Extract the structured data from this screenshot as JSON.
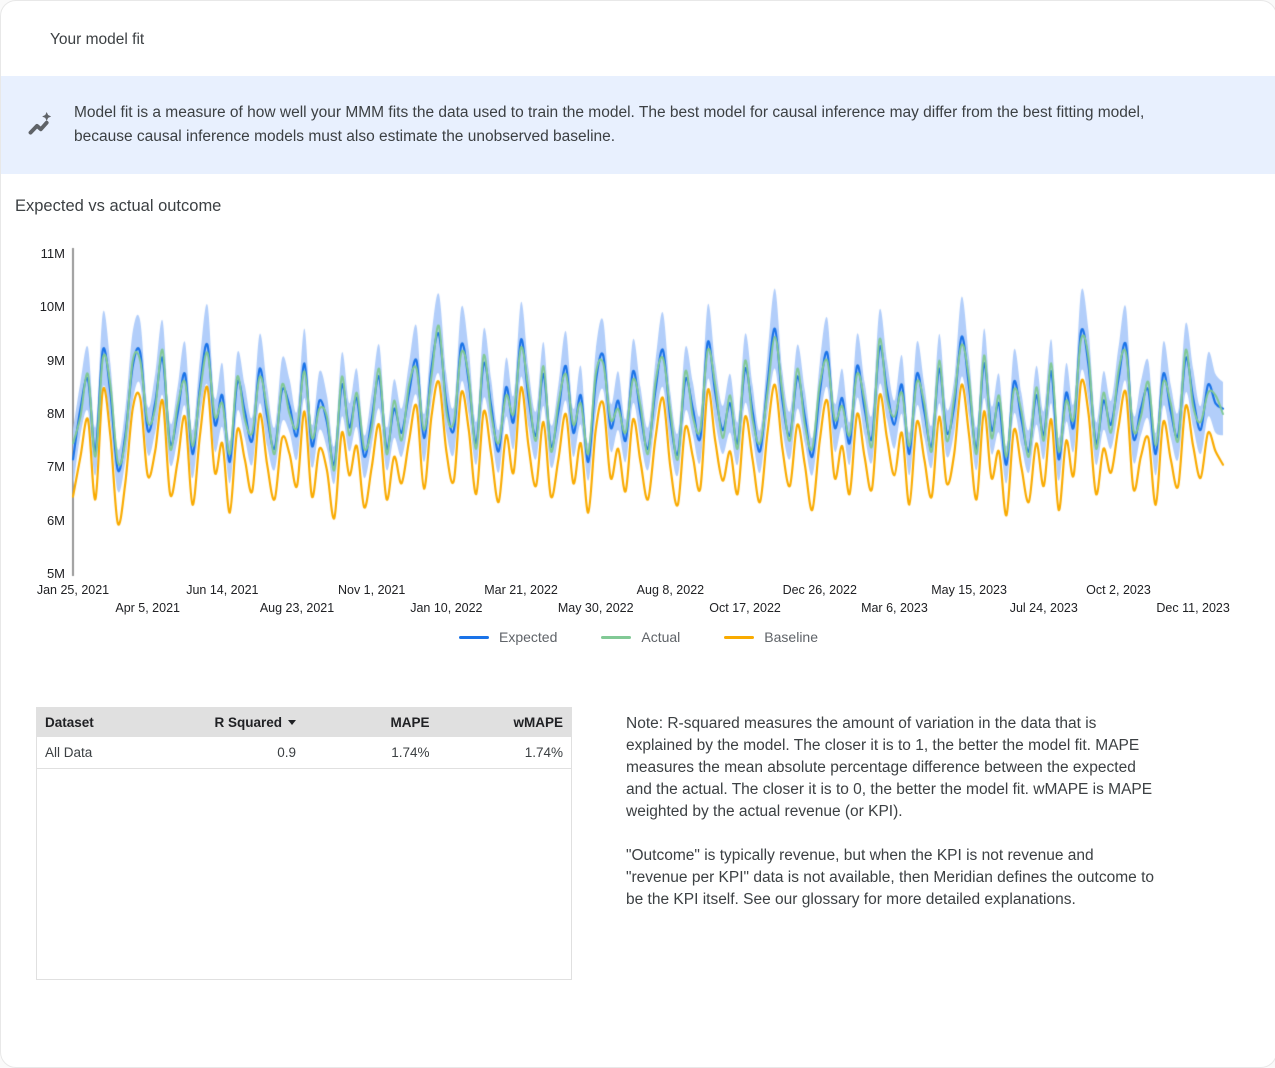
{
  "page": {
    "title": "Your model fit"
  },
  "banner": {
    "icon": "auto-graph-icon",
    "icon_color": "#5f6368",
    "background": "#e8f0fe",
    "text": "Model fit is a measure of how well your MMM fits the data used to train the model. The best model for causal inference may differ from the best fitting model, because causal inference models must also estimate the unobserved baseline."
  },
  "section": {
    "title": "Expected vs actual outcome"
  },
  "chart_data": {
    "type": "line",
    "title": "Expected vs actual outcome",
    "units": "M (millions)",
    "ylim_m": [
      5,
      11
    ],
    "y_ticks": [
      "11M",
      "10M",
      "9M",
      "8M",
      "7M",
      "6M",
      "5M"
    ],
    "x_ticks": [
      "Jan 25, 2021",
      "Apr 5, 2021",
      "Jun 14, 2021",
      "Aug 23, 2021",
      "Nov 1, 2021",
      "Jan 10, 2022",
      "Mar 21, 2022",
      "May 30, 2022",
      "Aug 8, 2022",
      "Oct 17, 2022",
      "Dec 26, 2022",
      "Mar 6, 2023",
      "May 15, 2023",
      "Jul 24, 2023",
      "Oct 2, 2023",
      "Dec 11, 2023"
    ],
    "x_tick_week_interval": 10,
    "x_description": "weekly points starting Jan 25, 2021 (values estimated from plot, in millions)",
    "grid": false,
    "legend_position": "bottom center",
    "legend": [
      "Expected",
      "Actual",
      "Baseline"
    ],
    "colors": {
      "expected": "#1a73e8",
      "actual": "#81c995",
      "baseline": "#f9ab00",
      "band": "#aecbfa"
    },
    "band_description": "shaded uncertainty band around expected: expected ± band_halfwidth",
    "series": {
      "expected": [
        7.15,
        8.1,
        8.65,
        7.3,
        9.2,
        8.4,
        6.95,
        7.6,
        8.9,
        9.15,
        7.7,
        8.2,
        9.05,
        7.45,
        8.0,
        8.75,
        7.25,
        8.5,
        9.3,
        7.8,
        8.35,
        7.1,
        8.6,
        8.05,
        7.5,
        8.85,
        7.95,
        7.35,
        8.45,
        8.15,
        7.6,
        8.95,
        7.4,
        8.25,
        7.85,
        7.05,
        8.55,
        7.75,
        8.3,
        7.2,
        7.9,
        8.7,
        7.35,
        8.1,
        7.65,
        8.4,
        9.0,
        7.55,
        8.85,
        9.5,
        8.2,
        7.7,
        9.3,
        8.6,
        7.45,
        8.95,
        8.15,
        7.3,
        8.5,
        7.85,
        9.4,
        8.3,
        7.6,
        8.75,
        7.4,
        8.05,
        8.9,
        7.65,
        8.35,
        7.1,
        8.6,
        9.1,
        7.75,
        8.25,
        7.5,
        8.8,
        8.0,
        7.35,
        8.45,
        9.2,
        7.9,
        7.25,
        8.65,
        8.1,
        7.55,
        9.35,
        8.4,
        7.7,
        8.2,
        7.45,
        8.85,
        8.05,
        7.3,
        8.55,
        9.6,
        8.25,
        7.6,
        8.7,
        7.95,
        7.2,
        8.4,
        9.15,
        7.75,
        8.3,
        7.45,
        8.9,
        8.1,
        7.55,
        9.25,
        8.45,
        7.8,
        8.55,
        7.25,
        8.75,
        8.05,
        7.4,
        8.85,
        7.65,
        8.15,
        9.45,
        8.5,
        7.35,
        8.95,
        7.7,
        8.2,
        7.05,
        8.6,
        7.9,
        7.3,
        8.35,
        7.6,
        8.8,
        7.15,
        8.4,
        7.75,
        9.55,
        8.9,
        7.45,
        8.25,
        7.8,
        8.65,
        9.3,
        7.55,
        8.1,
        8.45,
        7.25,
        8.75,
        8.05,
        7.6,
        9.05,
        8.3,
        7.7,
        8.55,
        8.2,
        8.1
      ],
      "actual": [
        7.45,
        7.95,
        8.75,
        7.2,
        9.05,
        8.55,
        7.1,
        7.5,
        9.0,
        9.0,
        7.85,
        8.1,
        9.2,
        7.35,
        8.15,
        8.6,
        7.4,
        8.4,
        9.15,
        7.95,
        8.2,
        7.25,
        8.7,
        7.9,
        7.65,
        8.7,
        8.1,
        7.25,
        8.55,
        8.0,
        7.75,
        8.8,
        7.55,
        8.1,
        7.95,
        6.95,
        8.7,
        7.6,
        8.4,
        7.35,
        7.75,
        8.85,
        7.25,
        8.25,
        7.5,
        8.55,
        8.85,
        7.7,
        8.7,
        9.65,
        8.05,
        7.85,
        9.15,
        8.7,
        7.35,
        9.1,
        8.0,
        7.45,
        8.35,
        8.0,
        9.25,
        8.45,
        7.5,
        8.9,
        7.3,
        8.2,
        8.75,
        7.8,
        8.2,
        7.25,
        8.75,
        8.95,
        7.9,
        8.1,
        7.65,
        8.65,
        8.15,
        7.25,
        8.6,
        9.05,
        8.05,
        7.15,
        8.8,
        7.95,
        7.7,
        9.2,
        8.55,
        7.55,
        8.35,
        7.35,
        9.0,
        7.9,
        7.45,
        8.4,
        9.45,
        8.4,
        7.5,
        8.85,
        7.8,
        7.35,
        8.55,
        9.0,
        7.9,
        8.15,
        7.6,
        8.75,
        8.25,
        7.4,
        9.4,
        8.3,
        7.95,
        8.4,
        7.4,
        8.6,
        8.2,
        7.3,
        9.0,
        7.5,
        8.3,
        9.3,
        8.65,
        7.25,
        9.1,
        7.55,
        8.35,
        7.2,
        8.45,
        8.05,
        7.2,
        8.5,
        7.5,
        8.95,
        7.3,
        8.25,
        7.9,
        9.4,
        9.05,
        7.35,
        8.4,
        7.65,
        8.8,
        9.15,
        7.7,
        7.95,
        8.6,
        7.4,
        8.6,
        8.2,
        7.5,
        9.2,
        8.15,
        7.85,
        8.4,
        8.35,
        8.0
      ],
      "baseline": [
        6.45,
        7.2,
        7.9,
        6.4,
        8.45,
        7.6,
        5.95,
        6.7,
        8.1,
        8.3,
        6.85,
        7.3,
        8.25,
        6.5,
        7.1,
        7.95,
        6.3,
        7.6,
        8.5,
        6.9,
        7.45,
        6.15,
        7.7,
        7.15,
        6.55,
        8.0,
        7.05,
        6.4,
        7.55,
        7.25,
        6.65,
        8.05,
        6.45,
        7.35,
        6.95,
        6.05,
        7.65,
        6.85,
        7.4,
        6.25,
        7.0,
        7.8,
        6.4,
        7.2,
        6.7,
        7.5,
        8.15,
        6.6,
        7.95,
        8.6,
        7.3,
        6.75,
        8.4,
        7.7,
        6.5,
        8.05,
        7.25,
        6.35,
        7.6,
        6.9,
        8.5,
        7.4,
        6.65,
        7.85,
        6.45,
        7.15,
        8.0,
        6.7,
        7.45,
        6.15,
        7.7,
        8.2,
        6.8,
        7.35,
        6.55,
        7.9,
        7.1,
        6.4,
        7.55,
        8.3,
        7.0,
        6.3,
        7.75,
        7.2,
        6.6,
        8.45,
        7.5,
        6.75,
        7.3,
        6.5,
        7.95,
        7.15,
        6.35,
        7.65,
        8.55,
        7.35,
        6.65,
        7.8,
        7.05,
        6.2,
        7.5,
        8.25,
        6.8,
        7.4,
        6.5,
        8.0,
        7.2,
        6.6,
        8.35,
        7.55,
        6.85,
        7.65,
        6.3,
        7.85,
        7.15,
        6.45,
        7.95,
        6.7,
        7.25,
        8.55,
        7.6,
        6.4,
        8.05,
        6.8,
        7.3,
        6.1,
        7.7,
        7.0,
        6.35,
        7.45,
        6.65,
        7.9,
        6.2,
        7.5,
        6.85,
        8.6,
        8.0,
        6.5,
        7.35,
        6.9,
        7.75,
        8.4,
        6.6,
        7.2,
        7.55,
        6.3,
        7.85,
        7.15,
        6.65,
        8.15,
        7.4,
        6.8,
        7.65,
        7.3,
        7.05
      ],
      "band_halfwidth": [
        0.55,
        0.5,
        0.6,
        0.45,
        0.7,
        0.55,
        0.4,
        0.5,
        0.65,
        0.6,
        0.45,
        0.55,
        0.7,
        0.4,
        0.5,
        0.6,
        0.45,
        0.55,
        0.75,
        0.5,
        0.6,
        0.4,
        0.55,
        0.5,
        0.45,
        0.65,
        0.55,
        0.4,
        0.6,
        0.5,
        0.45,
        0.65,
        0.4,
        0.55,
        0.5,
        0.35,
        0.6,
        0.45,
        0.55,
        0.4,
        0.5,
        0.6,
        0.4,
        0.55,
        0.45,
        0.55,
        0.65,
        0.45,
        0.6,
        0.75,
        0.55,
        0.45,
        0.7,
        0.6,
        0.4,
        0.65,
        0.5,
        0.4,
        0.55,
        0.5,
        0.7,
        0.55,
        0.45,
        0.6,
        0.4,
        0.5,
        0.65,
        0.45,
        0.55,
        0.35,
        0.6,
        0.65,
        0.45,
        0.55,
        0.4,
        0.6,
        0.5,
        0.4,
        0.55,
        0.7,
        0.5,
        0.4,
        0.6,
        0.5,
        0.45,
        0.7,
        0.55,
        0.45,
        0.55,
        0.4,
        0.65,
        0.5,
        0.4,
        0.55,
        0.75,
        0.55,
        0.45,
        0.6,
        0.5,
        0.35,
        0.55,
        0.65,
        0.45,
        0.55,
        0.4,
        0.6,
        0.5,
        0.45,
        0.7,
        0.55,
        0.45,
        0.55,
        0.4,
        0.6,
        0.5,
        0.4,
        0.65,
        0.45,
        0.5,
        0.75,
        0.55,
        0.4,
        0.65,
        0.45,
        0.55,
        0.35,
        0.6,
        0.5,
        0.4,
        0.55,
        0.45,
        0.6,
        0.4,
        0.55,
        0.45,
        0.75,
        0.65,
        0.4,
        0.55,
        0.45,
        0.6,
        0.7,
        0.45,
        0.5,
        0.55,
        0.4,
        0.6,
        0.5,
        0.45,
        0.65,
        0.55,
        0.45,
        0.6,
        0.55,
        0.5
      ]
    }
  },
  "table": {
    "headers": [
      "Dataset",
      "R Squared",
      "MAPE",
      "wMAPE"
    ],
    "sort_column": "R Squared",
    "sort_icon": "sort-desc-arrow",
    "rows": [
      [
        "All Data",
        "0.9",
        "1.74%",
        "1.74%"
      ]
    ]
  },
  "notes": {
    "p1": "Note: R-squared measures the amount of variation in the data that is explained by the model. The closer it is to 1, the better the model fit. MAPE measures the mean absolute percentage difference between the expected and the actual. The closer it is to 0, the better the model fit. wMAPE is MAPE weighted by the actual revenue (or KPI).",
    "p2": "\"Outcome\" is typically revenue, but when the KPI is not revenue and \"revenue per KPI\" data is not available, then Meridian defines the outcome to be the KPI itself. See our glossary for more detailed explanations."
  }
}
